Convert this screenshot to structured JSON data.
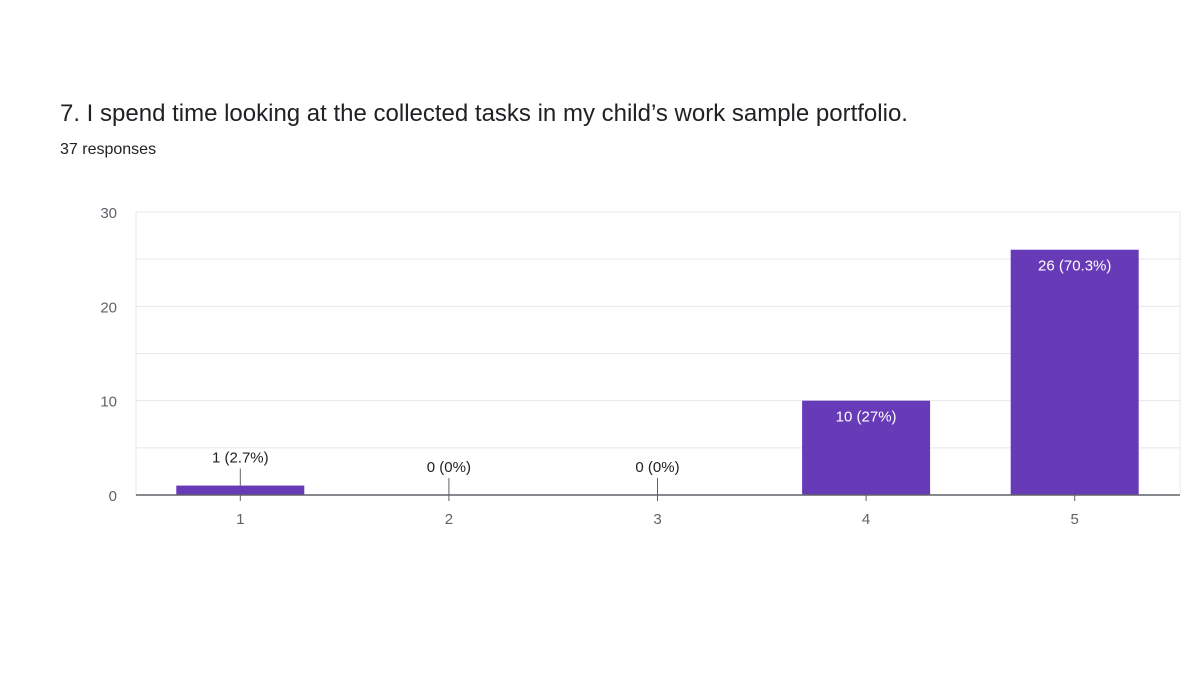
{
  "question": {
    "title": "7. I spend time looking at the collected tasks in my child’s work sample portfolio.",
    "responses": "37 responses"
  },
  "colors": {
    "bar": "#673ab7",
    "axis": "#5f6368",
    "grid": "#e8e8e8",
    "text": "#202124",
    "label_on_bar": "#ffffff"
  },
  "chart_data": {
    "type": "bar",
    "title": "7. I spend time looking at the collected tasks in my child’s work sample portfolio.",
    "xlabel": "",
    "ylabel": "",
    "categories": [
      "1",
      "2",
      "3",
      "4",
      "5"
    ],
    "values": [
      1,
      0,
      0,
      10,
      26
    ],
    "data_labels": [
      "1 (2.7%)",
      "0 (0%)",
      "0 (0%)",
      "10 (27%)",
      "26 (70.3%)"
    ],
    "ylim": [
      0,
      30
    ],
    "yticks": [
      0,
      10,
      20,
      30
    ],
    "grid": true,
    "legend": "none"
  }
}
